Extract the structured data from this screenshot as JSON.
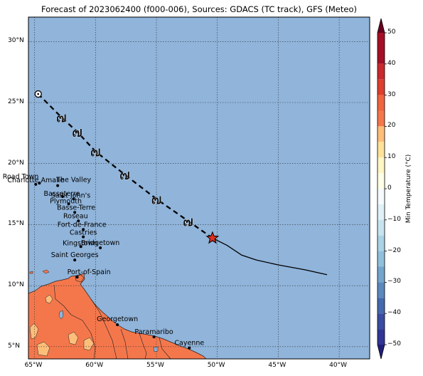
{
  "title": "Forecast of 2023062400 (f000-006), Sources: GDACS (TC track), GFS (Meteo)",
  "map": {
    "lon_range": [
      -65.5,
      -37.5
    ],
    "lat_range": [
      4,
      32
    ],
    "lat_ticks": [
      {
        "value": 30,
        "label": "30°N"
      },
      {
        "value": 25,
        "label": "25°N"
      },
      {
        "value": 20,
        "label": "20°N"
      },
      {
        "value": 15,
        "label": "15°N"
      },
      {
        "value": 10,
        "label": "10°N"
      },
      {
        "value": 5,
        "label": "5°N"
      }
    ],
    "lon_ticks": [
      {
        "value": -65,
        "label": "65°W"
      },
      {
        "value": -60,
        "label": "60°W"
      },
      {
        "value": -55,
        "label": "55°W"
      },
      {
        "value": -50,
        "label": "50°W"
      },
      {
        "value": -45,
        "label": "45°W"
      },
      {
        "value": -40,
        "label": "40°W"
      }
    ],
    "grid": "dotted",
    "colors": {
      "ocean": "#90b4da",
      "land_warm": "#f4774c",
      "land_hot": "#fdbe7a",
      "track": "#000000",
      "current_marker": "#e0301e"
    }
  },
  "track": {
    "observed": [
      [
        -50.4,
        13.9
      ],
      [
        -49.2,
        13.3
      ],
      [
        -48,
        12.5
      ],
      [
        -46.8,
        12.1
      ],
      [
        -45,
        11.7
      ],
      [
        -42.8,
        11.3
      ],
      [
        -41,
        10.9
      ]
    ],
    "forecast": [
      [
        -50.4,
        13.9
      ],
      [
        -52.4,
        15.3
      ],
      [
        -55,
        17.1
      ],
      [
        -57.6,
        19.1
      ],
      [
        -60,
        21
      ],
      [
        -61.5,
        22.6
      ],
      [
        -62.8,
        23.8
      ],
      [
        -64.7,
        25.7
      ]
    ],
    "storm_symbols": [
      [
        -52.4,
        15.3
      ],
      [
        -55,
        17.1
      ],
      [
        -57.6,
        19.1
      ],
      [
        -60,
        21
      ],
      [
        -61.5,
        22.6
      ],
      [
        -62.8,
        23.8
      ]
    ],
    "end_marker": [
      -64.7,
      25.7
    ],
    "current_position": [
      -50.4,
      13.9
    ]
  },
  "cities": [
    {
      "name": "Road Town",
      "lon": -64.6,
      "lat": 18.4
    },
    {
      "name": "Charlotte Amalie",
      "lon": -64.9,
      "lat": 18.3
    },
    {
      "name": "The Valley",
      "lon": -63.1,
      "lat": 18.2
    },
    {
      "name": "Basseterre",
      "lon": -62.7,
      "lat": 17.3
    },
    {
      "name": "Saint John's",
      "lon": -61.8,
      "lat": 17.1
    },
    {
      "name": "Plymouth",
      "lon": -62.2,
      "lat": 16.7
    },
    {
      "name": "Basse-Terre",
      "lon": -61.7,
      "lat": 16.0
    },
    {
      "name": "Roseau",
      "lon": -61.4,
      "lat": 15.3
    },
    {
      "name": "Fort-de-France",
      "lon": -61.0,
      "lat": 14.6
    },
    {
      "name": "Castries",
      "lon": -61.0,
      "lat": 14.0
    },
    {
      "name": "Kingstown",
      "lon": -61.2,
      "lat": 13.2
    },
    {
      "name": "Bridgetown",
      "lon": -59.6,
      "lat": 13.1
    },
    {
      "name": "Saint Georges",
      "lon": -61.7,
      "lat": 12.1
    },
    {
      "name": "Port-of-Spain",
      "lon": -61.5,
      "lat": 10.7
    },
    {
      "name": "Georgetown",
      "lon": -58.2,
      "lat": 6.8
    },
    {
      "name": "Paramaribo",
      "lon": -55.2,
      "lat": 5.8
    },
    {
      "name": "Cayenne",
      "lon": -52.3,
      "lat": 4.9
    }
  ],
  "colorbar": {
    "label": "Min Temperature (°C)",
    "min": -55,
    "max": 55,
    "ticks": [
      {
        "value": 50,
        "label": "50"
      },
      {
        "value": 40,
        "label": "40"
      },
      {
        "value": 30,
        "label": "30"
      },
      {
        "value": 20,
        "label": "20"
      },
      {
        "value": 10,
        "label": "10"
      },
      {
        "value": 0,
        "label": "0"
      },
      {
        "value": -10,
        "label": "−10"
      },
      {
        "value": -20,
        "label": "−20"
      },
      {
        "value": -30,
        "label": "−30"
      },
      {
        "value": -40,
        "label": "−40"
      },
      {
        "value": -50,
        "label": "−50"
      }
    ],
    "bands": [
      {
        "from": 50,
        "to": 55,
        "color": "#67001f"
      },
      {
        "from": 40,
        "to": 50,
        "color": "#a50f26"
      },
      {
        "from": 35,
        "to": 40,
        "color": "#c9292d"
      },
      {
        "from": 30,
        "to": 35,
        "color": "#de3f2e"
      },
      {
        "from": 25,
        "to": 30,
        "color": "#f0653f"
      },
      {
        "from": 20,
        "to": 25,
        "color": "#f4774c"
      },
      {
        "from": 15,
        "to": 20,
        "color": "#fdbe7a"
      },
      {
        "from": 10,
        "to": 15,
        "color": "#fee29a"
      },
      {
        "from": 5,
        "to": 10,
        "color": "#fff6c4"
      },
      {
        "from": 0,
        "to": 5,
        "color": "#fffee6"
      },
      {
        "from": -5,
        "to": 0,
        "color": "#f5fbfd"
      },
      {
        "from": -10,
        "to": -5,
        "color": "#dff0f6"
      },
      {
        "from": -15,
        "to": -10,
        "color": "#c6e4ef"
      },
      {
        "from": -20,
        "to": -15,
        "color": "#aad3e6"
      },
      {
        "from": -25,
        "to": -20,
        "color": "#90c0dc"
      },
      {
        "from": -30,
        "to": -25,
        "color": "#74a5cd"
      },
      {
        "from": -35,
        "to": -30,
        "color": "#5b88bd"
      },
      {
        "from": -40,
        "to": -35,
        "color": "#4569ad"
      },
      {
        "from": -45,
        "to": -40,
        "color": "#3a4c9f"
      },
      {
        "from": -50,
        "to": -45,
        "color": "#313695"
      },
      {
        "from": -55,
        "to": -50,
        "color": "#1f1f7a"
      }
    ]
  }
}
